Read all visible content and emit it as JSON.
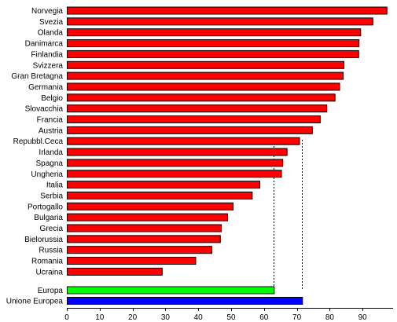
{
  "chart_data": {
    "type": "bar",
    "orientation": "horizontal",
    "xlim": [
      0,
      100
    ],
    "x_ticks": [
      0,
      10,
      20,
      30,
      40,
      50,
      60,
      70,
      80,
      90
    ],
    "grid": false,
    "colors": {
      "country": "#ff0000",
      "Europa": "#00ff00",
      "Unione Europea": "#0000ff"
    },
    "categories": [
      "Norvegia",
      "Svezia",
      "Olanda",
      "Danimarca",
      "Finlandia",
      "Svizzera",
      "Gran Bretagna",
      "Germania",
      "Belgio",
      "Slovacchia",
      "Francia",
      "Austria",
      "Repubbl.Ceca",
      "Irlanda",
      "Spagna",
      "Ungheria",
      "Italia",
      "Serbia",
      "Portogallo",
      "Bulgaria",
      "Grecia",
      "Bielorussia",
      "Russia",
      "Romania",
      "Ucraina"
    ],
    "values": [
      97.3,
      93.0,
      89.3,
      88.8,
      88.7,
      84.2,
      84.0,
      82.9,
      81.5,
      79.0,
      77.0,
      74.6,
      70.7,
      66.9,
      65.6,
      65.2,
      58.6,
      56.3,
      50.5,
      48.8,
      46.9,
      46.6,
      44.0,
      39.1,
      28.9
    ],
    "summary_bars": [
      {
        "label": "Europa",
        "value": 63.0,
        "color": "#00ff00"
      },
      {
        "label": "Unione Europea",
        "value": 71.6,
        "color": "#0000ff"
      }
    ],
    "reference_lines": [
      63.0,
      71.6
    ]
  }
}
